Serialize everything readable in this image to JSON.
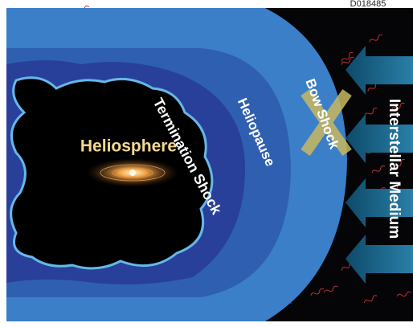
{
  "header": {
    "id": "D018485"
  },
  "labels": {
    "heliosphere": "Heliosphere",
    "termination_shock": "Termination Shock",
    "heliopause": "Heliopause",
    "bow_shock": "Bow Shock",
    "interstellar_medium": "Interstellar Medium"
  }
}
